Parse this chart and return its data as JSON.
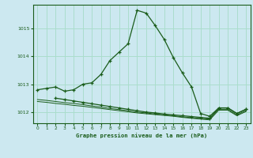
{
  "title": "Graphe pression niveau de la mer (hPa)",
  "background_color": "#cce8f0",
  "grid_color": "#aaddcc",
  "line_color": "#1a5c1a",
  "xlim": [
    -0.5,
    23.5
  ],
  "ylim": [
    1011.6,
    1015.85
  ],
  "yticks": [
    1012,
    1013,
    1014,
    1015
  ],
  "xticks": [
    0,
    1,
    2,
    3,
    4,
    5,
    6,
    7,
    8,
    9,
    10,
    11,
    12,
    13,
    14,
    15,
    16,
    17,
    18,
    19,
    20,
    21,
    22,
    23
  ],
  "series1": {
    "x": [
      0,
      1,
      2,
      3,
      4,
      5,
      6,
      7,
      8,
      9,
      10,
      11,
      12,
      13,
      14,
      15,
      16,
      17,
      18,
      19,
      20,
      21,
      22,
      23
    ],
    "y": [
      1012.8,
      1012.85,
      1012.9,
      1012.75,
      1012.8,
      1013.0,
      1013.05,
      1013.35,
      1013.85,
      1014.15,
      1014.45,
      1015.65,
      1015.55,
      1015.1,
      1014.6,
      1013.95,
      1013.4,
      1012.9,
      1011.95,
      1011.85,
      1012.15,
      1012.15,
      1011.95,
      1012.1
    ]
  },
  "series2": {
    "x": [
      2,
      3,
      4,
      5,
      6,
      7,
      8,
      9,
      10,
      11,
      12,
      13,
      14,
      15,
      16,
      17,
      18,
      19,
      20,
      21,
      22,
      23
    ],
    "y": [
      1012.5,
      1012.45,
      1012.4,
      1012.35,
      1012.3,
      1012.25,
      1012.2,
      1012.15,
      1012.1,
      1012.05,
      1012.0,
      1011.97,
      1011.93,
      1011.9,
      1011.87,
      1011.84,
      1011.81,
      1011.78,
      1012.15,
      1012.15,
      1011.95,
      1012.1
    ]
  },
  "series3": {
    "x": [
      0,
      1,
      2,
      3,
      4,
      5,
      6,
      7,
      8,
      9,
      10,
      11,
      12,
      13,
      14,
      15,
      16,
      17,
      18,
      19,
      20,
      21,
      22,
      23
    ],
    "y": [
      1012.45,
      1012.42,
      1012.38,
      1012.34,
      1012.31,
      1012.27,
      1012.22,
      1012.18,
      1012.13,
      1012.09,
      1012.05,
      1012.0,
      1011.97,
      1011.93,
      1011.9,
      1011.87,
      1011.83,
      1011.8,
      1011.77,
      1011.75,
      1012.1,
      1012.1,
      1011.9,
      1012.05
    ]
  },
  "series4": {
    "x": [
      0,
      1,
      2,
      3,
      4,
      5,
      6,
      7,
      8,
      9,
      10,
      11,
      12,
      13,
      14,
      15,
      16,
      17,
      18,
      19,
      20,
      21,
      22,
      23
    ],
    "y": [
      1012.38,
      1012.35,
      1012.31,
      1012.28,
      1012.24,
      1012.21,
      1012.17,
      1012.13,
      1012.09,
      1012.05,
      1012.01,
      1011.97,
      1011.94,
      1011.91,
      1011.88,
      1011.85,
      1011.81,
      1011.78,
      1011.75,
      1011.72,
      1012.07,
      1012.07,
      1011.87,
      1012.02
    ]
  }
}
